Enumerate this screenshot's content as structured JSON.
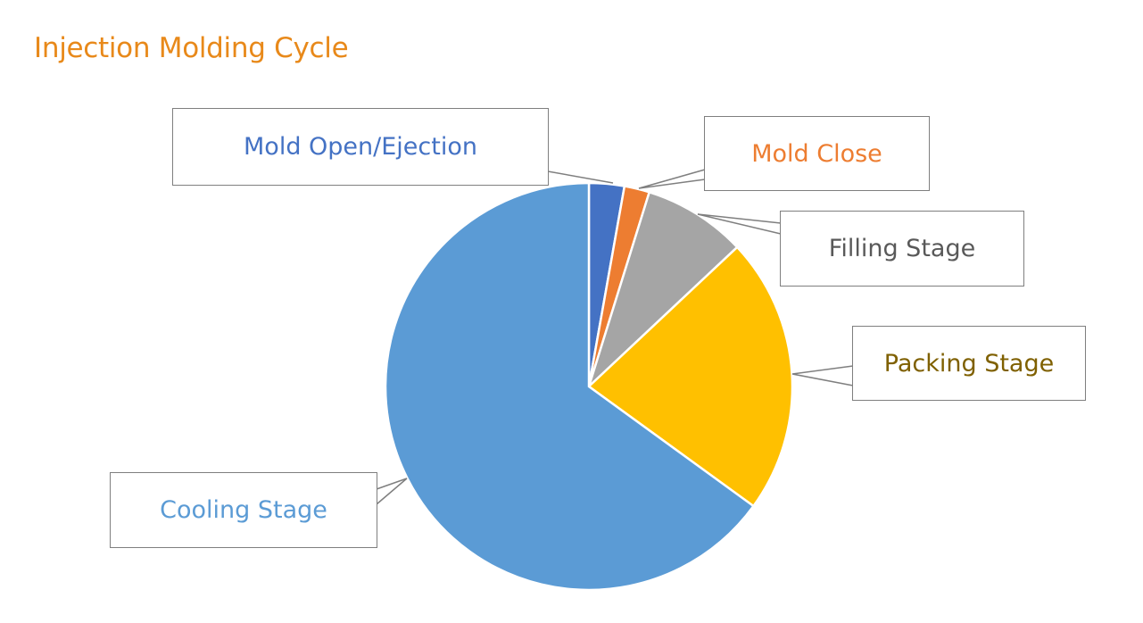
{
  "chart_data": {
    "type": "pie",
    "title": "Injection Molding Cycle",
    "categories": [
      "Mold Open/Ejection",
      "Mold Close",
      "Filling Stage",
      "Packing Stage",
      "Cooling Stage"
    ],
    "values": [
      2.8,
      2.0,
      8.2,
      22.0,
      65.0
    ],
    "colors": [
      "#4472C4",
      "#ED7D31",
      "#A5A5A5",
      "#FFC000",
      "#5B9BD5"
    ],
    "label_colors": [
      "#4472C4",
      "#ED7D31",
      "#595959",
      "#7F6000",
      "#5B9BD5"
    ],
    "start_angle_deg": 0,
    "direction": "clockwise",
    "legend": "none (callout data labels)"
  },
  "labels": {
    "mold_open": "Mold Open/Ejection",
    "mold_close": "Mold Close",
    "filling": "Filling Stage",
    "packing": "Packing Stage",
    "cooling": "Cooling Stage"
  }
}
